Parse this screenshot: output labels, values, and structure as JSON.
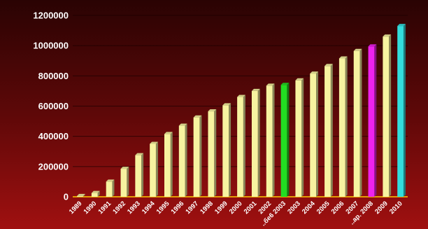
{
  "chart_data": {
    "type": "bar",
    "title": "",
    "xlabel": "",
    "ylabel": "",
    "ylim": [
      0,
      1200000
    ],
    "yticks": [
      "0",
      "200000",
      "400000",
      "600000",
      "800000",
      "1000000",
      "1200000"
    ],
    "grid": true,
    "legend": "none",
    "categories": [
      "1989",
      "1990",
      "1991",
      "1992",
      "1993",
      "1994",
      "1995",
      "1996",
      "1997",
      "1998",
      "1999",
      "2000",
      "2001",
      "2002",
      "..бе6 2003",
      "2003",
      "2004",
      "2005",
      "2006",
      "2007",
      "..ар. 2008",
      "2009",
      "2010"
    ],
    "values": [
      5000,
      25000,
      100000,
      185000,
      275000,
      350000,
      415000,
      470000,
      525000,
      565000,
      605000,
      660000,
      700000,
      735000,
      740000,
      770000,
      815000,
      865000,
      915000,
      965000,
      995000,
      1060000,
      1130000
    ],
    "bar_colors": [
      "#f7f3a0",
      "#f7f3a0",
      "#f7f3a0",
      "#f7f3a0",
      "#f7f3a0",
      "#f7f3a0",
      "#f7f3a0",
      "#f7f3a0",
      "#f7f3a0",
      "#f7f3a0",
      "#f7f3a0",
      "#f7f3a0",
      "#f7f3a0",
      "#f7f3a0",
      "#22dd22",
      "#f7f3a0",
      "#f7f3a0",
      "#f7f3a0",
      "#f7f3a0",
      "#f7f3a0",
      "#ee22ee",
      "#f7f3a0",
      "#33dddd"
    ],
    "background_color": "#6a0a0a",
    "axis_color": "#ffffff"
  }
}
